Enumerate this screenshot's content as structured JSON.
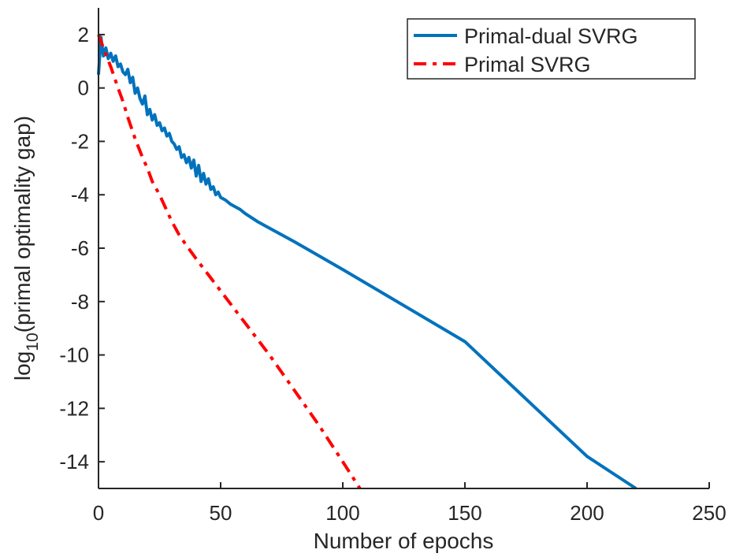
{
  "chart_data": {
    "type": "line",
    "title": "",
    "xlabel": "Number of epochs",
    "ylabel": {
      "prefix": "log",
      "subscript": "10",
      "suffix": "(primal optimality gap)"
    },
    "xlim": [
      0,
      250
    ],
    "ylim": [
      -15,
      3
    ],
    "xticks": [
      0,
      50,
      100,
      150,
      200,
      250
    ],
    "yticks": [
      -14,
      -12,
      -10,
      -8,
      -6,
      -4,
      -2,
      0,
      2
    ],
    "grid": false,
    "legend_position": "top-right",
    "series": [
      {
        "name": "Primal-dual SVRG",
        "color": "#0072BD",
        "style": "solid",
        "x": [
          0,
          1,
          2,
          3,
          4,
          5,
          6,
          7,
          8,
          9,
          10,
          11,
          12,
          13,
          14,
          15,
          16,
          17,
          18,
          19,
          20,
          21,
          22,
          23,
          24,
          25,
          26,
          27,
          28,
          29,
          30,
          31,
          32,
          33,
          34,
          35,
          36,
          37,
          38,
          39,
          40,
          41,
          42,
          43,
          44,
          45,
          46,
          47,
          48,
          49,
          50,
          52,
          54,
          56,
          58,
          60,
          65,
          70,
          80,
          100,
          150,
          200,
          220
        ],
        "y": [
          0.5,
          1.9,
          1.2,
          1.5,
          1.1,
          1.3,
          1.0,
          1.2,
          0.8,
          0.9,
          0.6,
          0.5,
          0.7,
          0.2,
          0.4,
          -0.2,
          0.0,
          -0.4,
          -0.6,
          -0.3,
          -1.0,
          -0.8,
          -1.2,
          -1.0,
          -1.4,
          -1.3,
          -1.6,
          -1.5,
          -1.8,
          -1.7,
          -2.0,
          -2.1,
          -2.3,
          -2.2,
          -2.6,
          -2.5,
          -2.8,
          -2.6,
          -3.0,
          -2.7,
          -3.3,
          -2.9,
          -3.5,
          -3.2,
          -3.6,
          -3.4,
          -3.8,
          -3.7,
          -4.0,
          -3.9,
          -4.1,
          -4.2,
          -4.35,
          -4.45,
          -4.55,
          -4.7,
          -5.0,
          -5.25,
          -5.75,
          -6.8,
          -9.5,
          -13.8,
          -15.0
        ]
      },
      {
        "name": "Primal SVRG",
        "color": "#FF0000",
        "style": "dashed",
        "x": [
          0,
          2,
          5,
          8,
          10,
          12,
          15,
          18,
          20,
          22,
          25,
          28,
          30,
          33,
          36,
          40,
          45,
          50,
          55,
          60,
          70,
          80,
          90,
          100,
          107
        ],
        "y": [
          2.0,
          1.5,
          0.8,
          0.0,
          -0.5,
          -1.1,
          -1.9,
          -2.6,
          -3.0,
          -3.5,
          -4.0,
          -4.6,
          -5.0,
          -5.5,
          -5.9,
          -6.4,
          -7.0,
          -7.6,
          -8.2,
          -8.8,
          -10.0,
          -11.3,
          -12.6,
          -14.0,
          -15.0
        ]
      }
    ]
  }
}
